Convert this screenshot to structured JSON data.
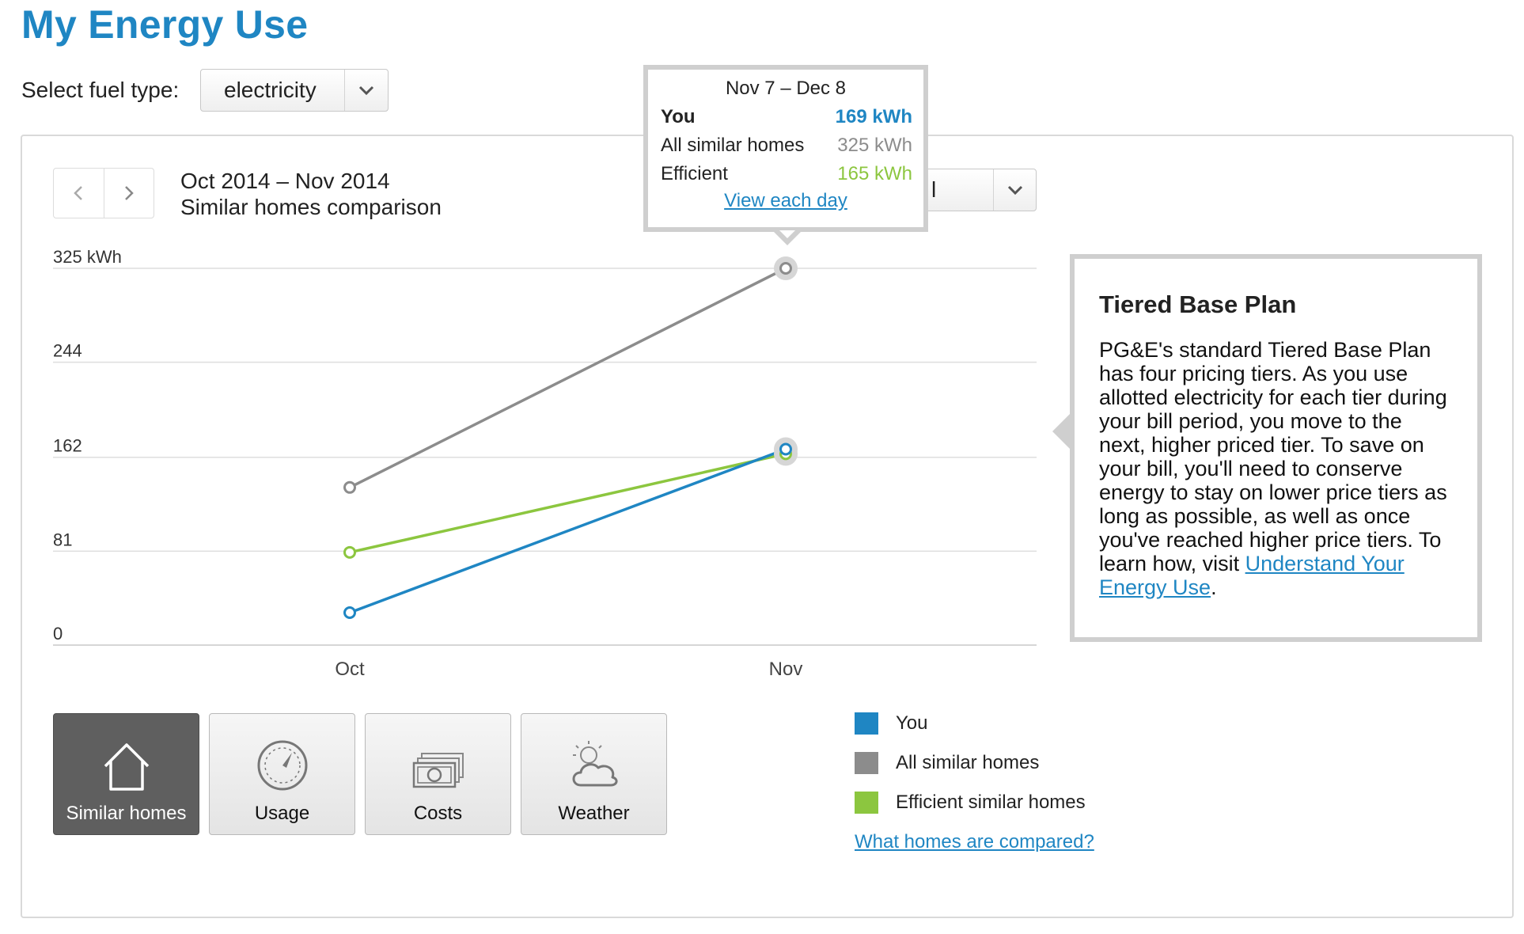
{
  "header": {
    "title": "My Energy Use"
  },
  "fuel": {
    "label": "Select fuel type:",
    "value": "electricity"
  },
  "nav": {
    "prev_icon": "chevron-left-icon",
    "next_icon": "chevron-right-icon"
  },
  "period": {
    "range": "Oct 2014 – Nov 2014",
    "subtitle": "Similar homes comparison"
  },
  "view_select": {
    "value": "l"
  },
  "tooltip": {
    "title": "Nov 7 – Dec 8",
    "rows": [
      {
        "name": "You",
        "value": "169 kWh",
        "color": "#1f86c3"
      },
      {
        "name": "All similar homes",
        "value": "325 kWh",
        "color": "#8c8c8c"
      },
      {
        "name": "Efficient",
        "value": "165 kWh",
        "color": "#8cc63f"
      }
    ],
    "link": "View each day"
  },
  "info": {
    "title": "Tiered Base Plan",
    "body": "PG&E's standard Tiered Base Plan has four pricing tiers. As you use allotted electricity for each tier during your bill period, you move to the next, higher priced tier. To save on your bill, you'll need to conserve energy to stay on lower price tiers as long as possible, as well as once you've reached higher price tiers. To learn how, visit ",
    "link": "Understand Your Energy Use",
    "end": "."
  },
  "tabs": [
    {
      "label": "Similar homes",
      "icon": "house-icon",
      "active": true
    },
    {
      "label": "Usage",
      "icon": "gauge-icon",
      "active": false
    },
    {
      "label": "Costs",
      "icon": "money-icon",
      "active": false
    },
    {
      "label": "Weather",
      "icon": "sun-cloud-icon",
      "active": false
    }
  ],
  "legend": {
    "items": [
      {
        "label": "You",
        "color": "#1f86c3"
      },
      {
        "label": "All similar homes",
        "color": "#8c8c8c"
      },
      {
        "label": "Efficient similar homes",
        "color": "#8cc63f"
      }
    ],
    "link": "What homes are compared?"
  },
  "chart_data": {
    "type": "line",
    "categories": [
      "Oct",
      "Nov"
    ],
    "ylim": [
      0,
      325
    ],
    "yticks": [
      "325 kWh",
      "244",
      "162",
      "81",
      "0"
    ],
    "ytick_values": [
      325,
      244,
      162,
      81,
      0
    ],
    "grid": true,
    "highlighted_category": "Nov",
    "series": [
      {
        "name": "All similar homes",
        "values": [
          136,
          325
        ],
        "color": "#8c8c8c"
      },
      {
        "name": "Efficient",
        "values": [
          80,
          165
        ],
        "color": "#8cc63f"
      },
      {
        "name": "You",
        "values": [
          28,
          169
        ],
        "color": "#1f86c3"
      }
    ]
  }
}
